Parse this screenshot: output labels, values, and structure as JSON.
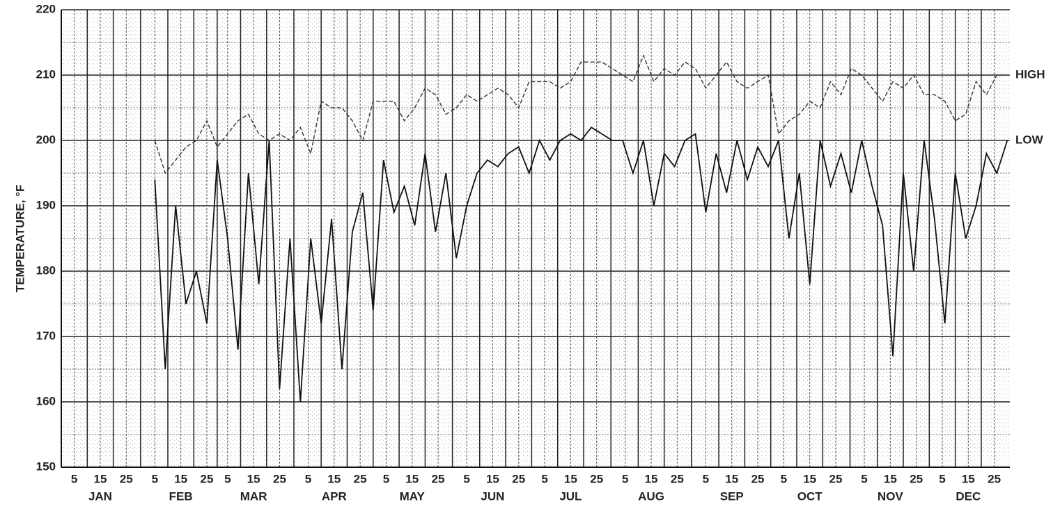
{
  "chart_data": {
    "type": "line",
    "y_label": "TEMPERATURE, °F",
    "x": [
      36,
      40,
      44,
      48,
      52,
      56,
      60,
      64,
      68,
      72,
      76,
      80,
      84,
      88,
      92,
      96,
      100,
      104,
      108,
      112,
      116,
      120,
      124,
      128,
      132,
      136,
      140,
      144,
      148,
      152,
      156,
      160,
      164,
      168,
      172,
      176,
      180,
      184,
      188,
      192,
      196,
      200,
      204,
      208,
      212,
      216,
      220,
      224,
      228,
      232,
      236,
      240,
      244,
      248,
      252,
      256,
      260,
      264,
      268,
      272,
      276,
      280,
      284,
      288,
      292,
      296,
      300,
      304,
      308,
      312,
      316,
      320,
      324,
      328,
      332,
      336,
      340,
      344,
      348,
      352,
      356,
      360,
      364
    ],
    "series": [
      {
        "name": "HIGH",
        "color": "#333333",
        "values": [
          200,
          195,
          197,
          199,
          200,
          203,
          199,
          201,
          203,
          204,
          201,
          200,
          201,
          200,
          202,
          198,
          206,
          205,
          205,
          203,
          200,
          206,
          206,
          206,
          203,
          205,
          208,
          207,
          204,
          205,
          207,
          206,
          207,
          208,
          207,
          205,
          209,
          209,
          209,
          208,
          209,
          212,
          212,
          212,
          211,
          210,
          209,
          213,
          209,
          211,
          210,
          212,
          211,
          208,
          210,
          212,
          209,
          208,
          209,
          210,
          201,
          203,
          204,
          206,
          205,
          209,
          207,
          211,
          210,
          208,
          206,
          209,
          208,
          210,
          207,
          207,
          206,
          203,
          204,
          209,
          207,
          210,
          210
        ]
      },
      {
        "name": "LOW",
        "color": "#111111",
        "values": [
          194,
          165,
          190,
          175,
          180,
          172,
          197,
          185,
          168,
          195,
          178,
          200,
          162,
          185,
          160,
          185,
          172,
          188,
          165,
          186,
          192,
          174,
          197,
          189,
          193,
          187,
          198,
          186,
          195,
          182,
          190,
          195,
          197,
          196,
          198,
          199,
          195,
          200,
          197,
          200,
          201,
          200,
          202,
          201,
          200,
          200,
          195,
          200,
          190,
          198,
          196,
          200,
          201,
          189,
          198,
          192,
          200,
          194,
          199,
          196,
          200,
          185,
          195,
          178,
          200,
          193,
          198,
          192,
          200,
          193,
          187,
          167,
          195,
          180,
          200,
          188,
          172,
          195,
          185,
          190,
          198,
          195,
          200
        ]
      }
    ],
    "xlim": [
      0,
      365
    ],
    "xticks": [
      {
        "value": 5,
        "label": "5"
      },
      {
        "value": 15,
        "label": "15"
      },
      {
        "value": 25,
        "label": "25"
      },
      {
        "value": 36,
        "label": "5"
      },
      {
        "value": 46,
        "label": "15"
      },
      {
        "value": 56,
        "label": "25"
      },
      {
        "value": 64,
        "label": "5"
      },
      {
        "value": 74,
        "label": "15"
      },
      {
        "value": 84,
        "label": "25"
      },
      {
        "value": 95,
        "label": "5"
      },
      {
        "value": 105,
        "label": "15"
      },
      {
        "value": 115,
        "label": "25"
      },
      {
        "value": 125,
        "label": "5"
      },
      {
        "value": 135,
        "label": "15"
      },
      {
        "value": 145,
        "label": "25"
      },
      {
        "value": 156,
        "label": "5"
      },
      {
        "value": 166,
        "label": "15"
      },
      {
        "value": 176,
        "label": "25"
      },
      {
        "value": 186,
        "label": "5"
      },
      {
        "value": 196,
        "label": "15"
      },
      {
        "value": 206,
        "label": "25"
      },
      {
        "value": 217,
        "label": "5"
      },
      {
        "value": 227,
        "label": "15"
      },
      {
        "value": 237,
        "label": "25"
      },
      {
        "value": 248,
        "label": "5"
      },
      {
        "value": 258,
        "label": "15"
      },
      {
        "value": 268,
        "label": "25"
      },
      {
        "value": 278,
        "label": "5"
      },
      {
        "value": 288,
        "label": "15"
      },
      {
        "value": 298,
        "label": "25"
      },
      {
        "value": 309,
        "label": "5"
      },
      {
        "value": 319,
        "label": "15"
      },
      {
        "value": 329,
        "label": "25"
      },
      {
        "value": 339,
        "label": "5"
      },
      {
        "value": 349,
        "label": "15"
      },
      {
        "value": 359,
        "label": "25"
      }
    ],
    "months": [
      "JAN",
      "FEB",
      "MAR",
      "APR",
      "MAY",
      "JUN",
      "JUL",
      "AUG",
      "SEP",
      "OCT",
      "NOV",
      "DEC"
    ],
    "ylim": [
      150,
      220
    ],
    "yticks": [
      150,
      160,
      170,
      180,
      190,
      200,
      210,
      220
    ],
    "y_minor_ticks": [
      155,
      165,
      175,
      185,
      195,
      205,
      215
    ],
    "grid": true
  }
}
